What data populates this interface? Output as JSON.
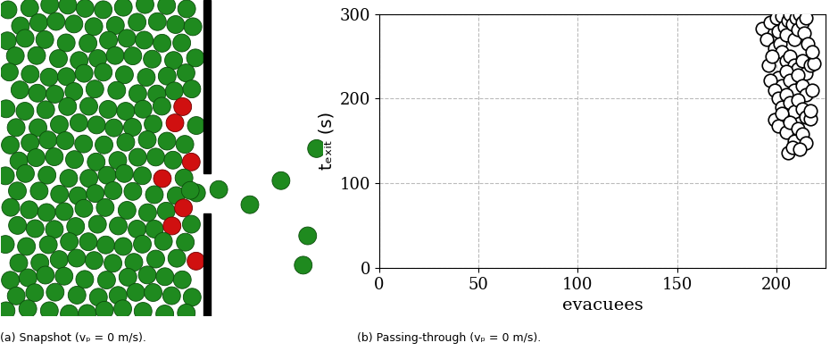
{
  "snapshot": {
    "caption": "(a) Snapshot (vₚ = 0 m/s)."
  },
  "chart_data": {
    "type": "scatter",
    "caption": "(b) Passing-through (vₚ = 0 m/s).",
    "xlabel": "evacuees",
    "ylabel": "tₑₓᵢₜ (s)",
    "x": [
      193,
      195,
      197,
      199,
      200,
      201,
      202,
      203,
      204,
      205,
      206,
      207,
      208,
      209,
      210,
      211,
      212,
      213,
      214,
      215,
      203,
      205,
      207,
      209,
      211,
      213,
      215,
      217,
      219,
      201,
      203,
      205,
      207,
      209,
      211,
      213,
      215,
      197,
      199,
      201,
      203,
      205,
      207,
      209,
      211,
      213,
      215,
      217,
      199,
      201,
      203,
      205,
      207,
      209,
      211,
      213,
      215,
      206,
      208,
      212,
      217,
      218,
      196,
      198,
      216,
      218
    ],
    "y": [
      283,
      270,
      290,
      260,
      295,
      280,
      265,
      298,
      285,
      275,
      292,
      300,
      288,
      270,
      296,
      282,
      300,
      290,
      278,
      296,
      255,
      245,
      250,
      240,
      235,
      245,
      230,
      240,
      242,
      225,
      215,
      232,
      222,
      210,
      228,
      215,
      205,
      222,
      210,
      200,
      190,
      205,
      195,
      185,
      198,
      188,
      178,
      176,
      175,
      168,
      182,
      160,
      172,
      150,
      165,
      158,
      148,
      136,
      142,
      140,
      186,
      210,
      240,
      250,
      265,
      255
    ],
    "xlim": [
      0,
      225
    ],
    "ylim": [
      0,
      300
    ],
    "xticks": [
      0,
      50,
      100,
      150,
      200
    ],
    "yticks": [
      0,
      100,
      200,
      300
    ],
    "grid": true,
    "marker": "o",
    "color": "#000000"
  }
}
